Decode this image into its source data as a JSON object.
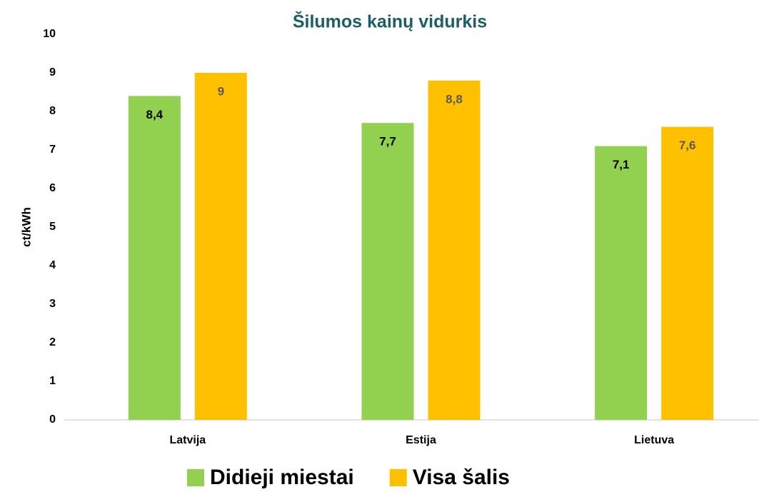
{
  "chart_data": {
    "type": "bar",
    "title": "Šilumos kainų vidurkis",
    "y_label": "ct/kWh",
    "categories": [
      "Latvija",
      "Estija",
      "Lietuva"
    ],
    "series": [
      {
        "name": "Didieji miestai",
        "color": "#92d050",
        "label_color": "#000000",
        "values": [
          8.4,
          7.7,
          7.1
        ],
        "value_labels": [
          "8,4",
          "7,7",
          "7,1"
        ]
      },
      {
        "name": "Visa šalis",
        "color": "#ffc000",
        "label_color": "#595959",
        "values": [
          9,
          8.8,
          7.6
        ],
        "value_labels": [
          "9",
          "8,8",
          "7,6"
        ]
      }
    ],
    "ylim": [
      0,
      10
    ],
    "yticks": [
      0,
      1,
      2,
      3,
      4,
      5,
      6,
      7,
      8,
      9,
      10
    ],
    "grid": false,
    "legend": "bottom"
  }
}
